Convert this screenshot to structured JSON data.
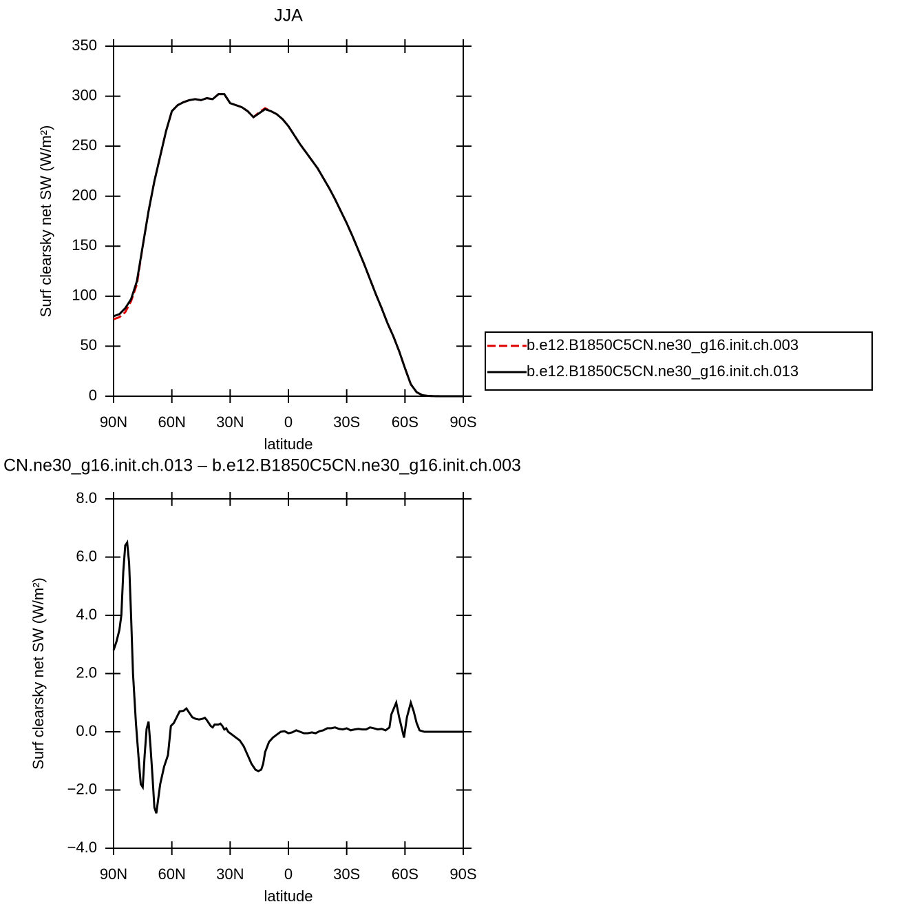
{
  "chart_data": [
    {
      "type": "line",
      "title": "JJA",
      "xlabel": "latitude",
      "ylabel": "Surf clearsky net SW (W/m²)",
      "x": [
        90,
        87,
        84,
        81,
        78,
        75,
        72,
        69,
        66,
        63,
        60,
        57,
        54,
        51,
        48,
        45,
        42,
        39,
        36,
        33,
        30,
        27,
        24,
        21,
        18,
        15,
        12,
        9,
        6,
        3,
        0,
        -3,
        -6,
        -9,
        -12,
        -15,
        -18,
        -21,
        -24,
        -27,
        -30,
        -33,
        -36,
        -39,
        -42,
        -45,
        -48,
        -51,
        -54,
        -57,
        -60,
        -63,
        -66,
        -69,
        -72,
        -75,
        -78,
        -81,
        -84,
        -87,
        -90
      ],
      "series": [
        {
          "name": "b.e12.B1850C5CN.ne30_g16.init.ch.003",
          "color": "#e00000",
          "dash": true,
          "values": [
            77,
            79,
            84,
            95,
            112,
            150,
            185,
            215,
            240,
            265,
            285,
            291,
            294,
            296,
            297,
            296,
            298,
            297,
            302,
            302,
            293,
            291,
            289,
            285,
            279,
            284,
            288,
            285,
            282,
            277,
            270,
            261,
            252,
            244,
            236,
            228,
            218,
            208,
            197,
            185,
            173,
            160,
            146,
            132,
            117,
            102,
            88,
            73,
            60,
            45,
            28,
            12,
            4,
            1,
            0.3,
            0.1,
            0,
            0,
            0,
            0,
            0
          ]
        },
        {
          "name": "b.e12.B1850C5CN.ne30_g16.init.ch.013",
          "color": "#000000",
          "dash": false,
          "values": [
            80,
            82,
            88,
            97,
            115,
            150,
            185,
            215,
            240,
            265,
            285,
            291,
            294,
            296,
            297,
            296,
            298,
            297,
            302,
            302,
            293,
            291,
            289,
            285,
            279,
            283,
            287,
            285,
            282,
            277,
            270,
            261,
            252,
            244,
            236,
            228,
            218,
            208,
            197,
            185,
            173,
            160,
            146,
            132,
            117,
            102,
            88,
            73,
            60,
            45,
            28,
            12,
            4,
            1,
            0.3,
            0.1,
            0,
            0,
            0,
            0,
            0
          ]
        }
      ],
      "xlim": [
        90,
        -90
      ],
      "xticks": [
        {
          "value": 90,
          "label": "90N"
        },
        {
          "value": 60,
          "label": "60N"
        },
        {
          "value": 30,
          "label": "30N"
        },
        0,
        {
          "value": -30,
          "label": "30S"
        },
        {
          "value": -60,
          "label": "60S"
        },
        {
          "value": -90,
          "label": "90S"
        }
      ],
      "ylim": [
        0,
        350
      ],
      "yticks": [
        0,
        50,
        100,
        150,
        200,
        250,
        300,
        350
      ],
      "legend": "outside-right"
    },
    {
      "type": "line",
      "title": "CN.ne30_g16.init.ch.013 – b.e12.B1850C5CN.ne30_g16.init.ch.003",
      "xlabel": "latitude",
      "ylabel": "Surf clearsky net SW (W/m²)",
      "x": [
        90,
        88.5,
        87,
        86,
        85,
        84,
        83,
        82,
        81,
        80,
        78.5,
        77,
        76,
        75,
        74,
        73,
        72,
        71,
        70,
        69,
        68,
        67,
        66,
        64,
        62,
        60.5,
        59,
        57.5,
        56,
        54,
        52.5,
        51,
        49.5,
        48,
        46,
        44,
        43,
        42,
        40,
        39,
        38,
        36,
        35,
        34,
        33,
        32,
        31,
        29,
        27,
        25,
        23,
        21,
        19,
        17,
        15.5,
        14,
        13,
        12,
        10,
        8,
        6,
        4,
        2,
        0,
        -2,
        -4,
        -6,
        -8,
        -10,
        -12,
        -14,
        -16,
        -18,
        -20,
        -22,
        -24,
        -26,
        -28,
        -30,
        -32,
        -34,
        -36,
        -38,
        -40,
        -42,
        -44,
        -46,
        -48,
        -50,
        -52,
        -53,
        -55.5,
        -57,
        -59.5,
        -61,
        -63,
        -64.5,
        -66,
        -67.5,
        -70,
        -75,
        -80,
        -85,
        -90
      ],
      "series": [
        {
          "color": "#000000",
          "values": [
            2.8,
            3.1,
            3.5,
            4.0,
            5.5,
            6.4,
            6.5,
            5.8,
            4.0,
            2.0,
            0.3,
            -1.0,
            -1.8,
            -1.9,
            -0.8,
            0.1,
            0.35,
            -0.5,
            -1.5,
            -2.6,
            -2.8,
            -2.3,
            -1.8,
            -1.2,
            -0.8,
            0.2,
            0.3,
            0.5,
            0.7,
            0.72,
            0.8,
            0.65,
            0.5,
            0.45,
            0.42,
            0.45,
            0.48,
            0.4,
            0.2,
            0.15,
            0.25,
            0.25,
            0.28,
            0.2,
            0.08,
            0.12,
            0.0,
            -0.1,
            -0.2,
            -0.3,
            -0.5,
            -0.8,
            -1.1,
            -1.3,
            -1.35,
            -1.3,
            -1.1,
            -0.7,
            -0.35,
            -0.2,
            -0.1,
            0.0,
            0.02,
            -0.05,
            -0.02,
            0.05,
            0.0,
            -0.05,
            -0.05,
            -0.02,
            -0.05,
            0.02,
            0.05,
            0.12,
            0.12,
            0.15,
            0.1,
            0.08,
            0.12,
            0.05,
            0.08,
            0.1,
            0.08,
            0.08,
            0.15,
            0.12,
            0.08,
            0.1,
            0.05,
            0.15,
            0.6,
            1.0,
            0.5,
            -0.2,
            0.5,
            1.0,
            0.7,
            0.3,
            0.05,
            0.0,
            0,
            0,
            0,
            0
          ]
        }
      ],
      "xlim": [
        90,
        -90
      ],
      "xticks": [
        {
          "value": 90,
          "label": "90N"
        },
        {
          "value": 60,
          "label": "60N"
        },
        {
          "value": 30,
          "label": "30N"
        },
        0,
        {
          "value": -30,
          "label": "30S"
        },
        {
          "value": -60,
          "label": "60S"
        },
        {
          "value": -90,
          "label": "90S"
        }
      ],
      "ylim": [
        -4,
        8
      ],
      "yticks": [
        {
          "value": -4,
          "label": "−4.0"
        },
        {
          "value": -2,
          "label": "−2.0"
        },
        {
          "value": 0,
          "label": "0.0"
        },
        {
          "value": 2,
          "label": "2.0"
        },
        {
          "value": 4,
          "label": "4.0"
        },
        {
          "value": 6,
          "label": "6.0"
        },
        {
          "value": 8,
          "label": "8.0"
        }
      ]
    }
  ]
}
